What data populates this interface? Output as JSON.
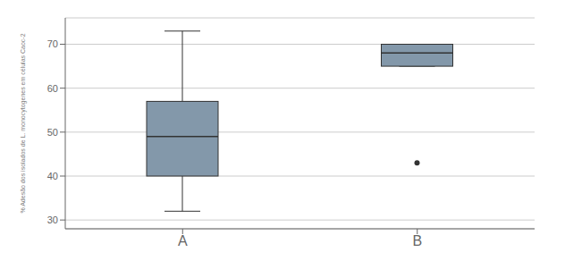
{
  "chart_data": {
    "type": "box",
    "categories": [
      "A",
      "B"
    ],
    "boxes": [
      {
        "whisker_low": 32,
        "q1": 40,
        "median": 49,
        "q3": 57,
        "whisker_high": 73,
        "outliers": []
      },
      {
        "whisker_low": 65,
        "q1": 65,
        "median": 68,
        "q3": 70,
        "whisker_high": 70,
        "outliers": [
          43
        ]
      }
    ],
    "ylabel": "% Adesão dos isolados de L. monocytogenes em células Caoc-2",
    "ylim": [
      28,
      76
    ],
    "yticks": [
      30,
      40,
      50,
      60,
      70
    ],
    "grid": true,
    "color": "#8398AA"
  }
}
